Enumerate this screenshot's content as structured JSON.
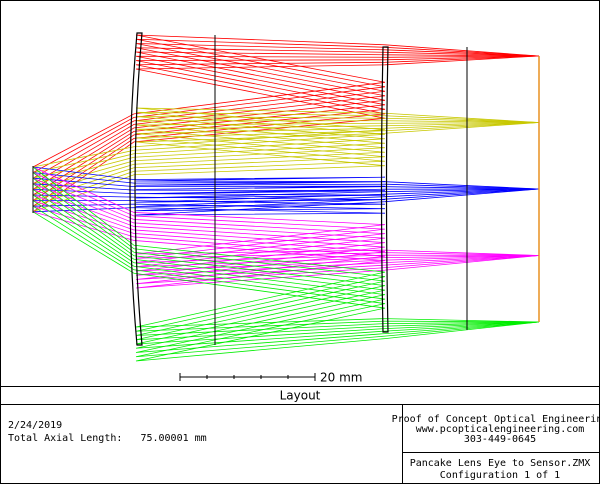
{
  "scale_bar_label": "20 mm",
  "title": "Layout",
  "date": "2/24/2019",
  "axial_length": "Total Axial Length:   75.00001 mm",
  "company": [
    "Proof of Concept Optical Engineering",
    "www.pcopticalengineering.com",
    "303-449-0645"
  ],
  "file": "Pancake Lens Eye to Sensor.ZMX",
  "configuration": "Configuration 1 of 1"
}
